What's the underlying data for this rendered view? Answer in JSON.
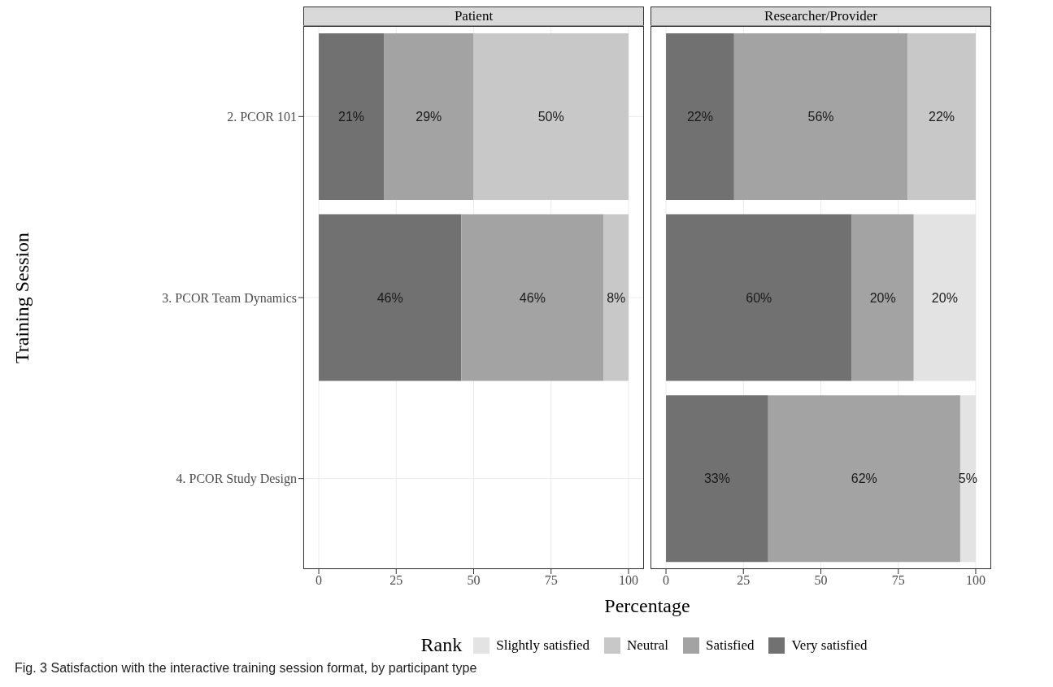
{
  "chart_data": [
    {
      "type": "bar",
      "title": "Patient",
      "ylabel": "Training Session",
      "orientation": "horizontal",
      "stacked": true,
      "categories": [
        "2. PCOR 101",
        "3. PCOR Team Dynamics",
        "4. PCOR Study Design"
      ],
      "xlim": [
        -5,
        105
      ],
      "xticks": [
        0,
        25,
        50,
        75,
        100
      ],
      "grid": true,
      "series": [
        {
          "color": "#717171",
          "values": [
            21,
            46,
            null
          ],
          "value_labels": [
            "21%",
            "46%",
            null
          ]
        },
        {
          "color": "#a3a3a3",
          "values": [
            29,
            46,
            null
          ],
          "value_labels": [
            "29%",
            "46%",
            null
          ]
        },
        {
          "color": "#c8c8c8",
          "values": [
            50,
            8,
            null
          ],
          "value_labels": [
            "50%",
            "8%",
            null
          ]
        }
      ],
      "annotations": [
        "Fig. 3 Satisfaction with the interactive training session format, by participant type"
      ]
    },
    {
      "type": "bar",
      "title": "Researcher/Provider",
      "xlabel": "Percentage",
      "legend_title": "Rank",
      "legend": "bottom",
      "orientation": "horizontal",
      "stacked": true,
      "tick_labels": "x",
      "xlim": [
        -5,
        105
      ],
      "xticks": [
        0,
        25,
        50,
        75,
        100
      ],
      "grid": true,
      "series": [
        {
          "name": "Very satisfied",
          "color": "#717171",
          "values": [
            22,
            60,
            33
          ],
          "value_labels": [
            "22%",
            "60%",
            "33%"
          ]
        },
        {
          "name": "Satisfied",
          "color": "#a3a3a3",
          "values": [
            56,
            20,
            62
          ],
          "value_labels": [
            "56%",
            "20%",
            "62%"
          ]
        },
        {
          "name": "Neutral",
          "color": "#c8c8c8",
          "values": [
            22,
            null,
            null
          ],
          "value_labels": [
            "22%",
            null,
            null
          ]
        },
        {
          "name": "Slightly satisfied",
          "color": "#e3e3e3",
          "values": [
            null,
            20,
            5
          ],
          "value_labels": [
            null,
            "20%",
            "5%"
          ]
        }
      ]
    }
  ]
}
